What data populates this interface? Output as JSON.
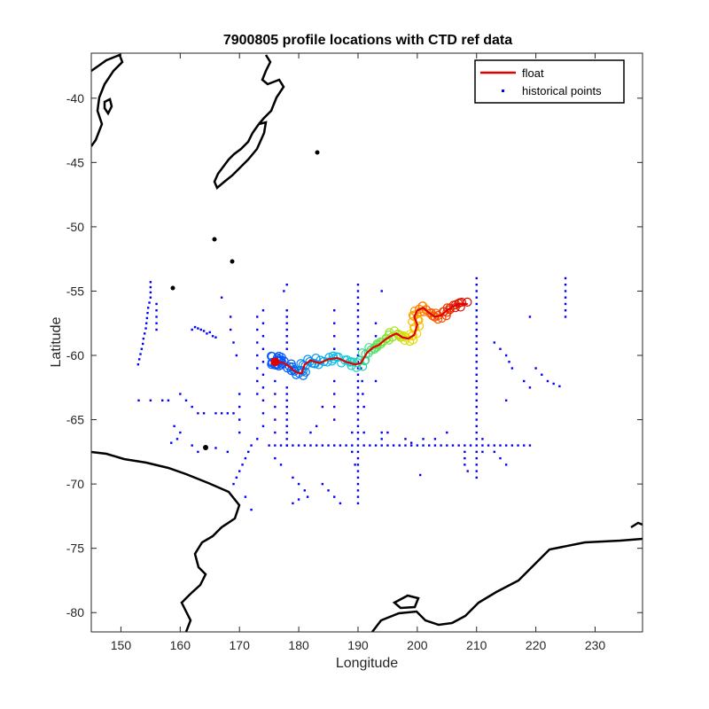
{
  "chart_data": {
    "type": "scatter",
    "title": "7900805 profile locations with CTD ref data",
    "xlabel": "Longitude",
    "ylabel": "Latitude",
    "xlim": [
      145,
      238
    ],
    "ylim": [
      -81.5,
      -36.5
    ],
    "xticks": [
      150,
      160,
      170,
      180,
      190,
      200,
      210,
      220,
      230
    ],
    "yticks": [
      -40,
      -45,
      -50,
      -55,
      -60,
      -65,
      -70,
      -75,
      -80
    ],
    "grid": false,
    "legend_position": "top-right",
    "legend": [
      {
        "label": "float",
        "style": "line",
        "color": "#e00000"
      },
      {
        "label": "historical points",
        "style": "dot",
        "color": "#0000ff"
      }
    ],
    "float_track": [
      [
        176.0,
        -60.5
      ],
      [
        177.5,
        -60.6
      ],
      [
        178.5,
        -60.9
      ],
      [
        179.5,
        -61.3
      ],
      [
        180.5,
        -61.4
      ],
      [
        181.0,
        -60.7
      ],
      [
        182.0,
        -60.4
      ],
      [
        183.5,
        -60.6
      ],
      [
        185.0,
        -60.3
      ],
      [
        186.5,
        -60.2
      ],
      [
        188.0,
        -60.5
      ],
      [
        189.5,
        -60.7
      ],
      [
        190.5,
        -60.6
      ],
      [
        191.5,
        -59.8
      ],
      [
        192.5,
        -59.4
      ],
      [
        193.5,
        -59.2
      ],
      [
        194.5,
        -58.8
      ],
      [
        195.5,
        -58.5
      ],
      [
        196.5,
        -58.3
      ],
      [
        197.5,
        -58.6
      ],
      [
        198.5,
        -58.7
      ],
      [
        199.5,
        -58.4
      ],
      [
        200.0,
        -57.6
      ],
      [
        199.5,
        -57.0
      ],
      [
        200.0,
        -56.5
      ],
      [
        201.0,
        -56.3
      ],
      [
        202.0,
        -56.7
      ],
      [
        203.0,
        -57.0
      ],
      [
        204.0,
        -56.9
      ],
      [
        205.0,
        -56.5
      ],
      [
        206.0,
        -56.2
      ],
      [
        207.0,
        -56.0
      ],
      [
        208.5,
        -56.0
      ]
    ],
    "historical_points": [
      [
        155,
        -54.3
      ],
      [
        155,
        -54.7
      ],
      [
        155,
        -55.1
      ],
      [
        155,
        -55.5
      ],
      [
        154.8,
        -55.9
      ],
      [
        154.6,
        -56.3
      ],
      [
        154.5,
        -56.7
      ],
      [
        154.4,
        -57.1
      ],
      [
        154.3,
        -57.5
      ],
      [
        154.2,
        -57.9
      ],
      [
        154.0,
        -58.3
      ],
      [
        153.8,
        -58.7
      ],
      [
        153.7,
        -59.1
      ],
      [
        153.5,
        -59.5
      ],
      [
        153.3,
        -59.9
      ],
      [
        153.1,
        -60.3
      ],
      [
        152.9,
        -60.7
      ],
      [
        156,
        -56.0
      ],
      [
        156,
        -56.5
      ],
      [
        156,
        -57.0
      ],
      [
        156,
        -57.5
      ],
      [
        156,
        -58.0
      ],
      [
        153,
        -63.5
      ],
      [
        155,
        -63.5
      ],
      [
        157,
        -63.5
      ],
      [
        158,
        -63.5
      ],
      [
        160,
        -63.0
      ],
      [
        161,
        -63.5
      ],
      [
        162,
        -64.0
      ],
      [
        163,
        -64.5
      ],
      [
        164,
        -64.5
      ],
      [
        166,
        -64.5
      ],
      [
        167,
        -64.5
      ],
      [
        168,
        -64.5
      ],
      [
        169,
        -64.5
      ],
      [
        159,
        -65.5
      ],
      [
        160,
        -66.0
      ],
      [
        159.5,
        -66.5
      ],
      [
        158.5,
        -66.8
      ],
      [
        162,
        -67.0
      ],
      [
        163,
        -67.5
      ],
      [
        166,
        -67.2
      ],
      [
        168,
        -67.5
      ],
      [
        162,
        -58.0
      ],
      [
        162.5,
        -57.8
      ],
      [
        163,
        -57.9
      ],
      [
        163.5,
        -58.0
      ],
      [
        164,
        -58.1
      ],
      [
        164.5,
        -58.3
      ],
      [
        165,
        -58.2
      ],
      [
        165.5,
        -58.5
      ],
      [
        166,
        -58.6
      ],
      [
        167,
        -55.5
      ],
      [
        168.5,
        -57.0
      ],
      [
        168.5,
        -58.0
      ],
      [
        169,
        -59.0
      ],
      [
        169.5,
        -60.0
      ],
      [
        170,
        -63.0
      ],
      [
        170,
        -64.0
      ],
      [
        170,
        -65.0
      ],
      [
        170,
        -66.0
      ],
      [
        173,
        -57.0
      ],
      [
        173,
        -58.0
      ],
      [
        173,
        -59.0
      ],
      [
        173,
        -60.0
      ],
      [
        173,
        -61.0
      ],
      [
        173,
        -62.0
      ],
      [
        173,
        -63.0
      ],
      [
        174,
        -56.5
      ],
      [
        174,
        -57.5
      ],
      [
        174,
        -58.5
      ],
      [
        174,
        -59.5
      ],
      [
        174,
        -60.5
      ],
      [
        174,
        -61.5
      ],
      [
        174,
        -62.5
      ],
      [
        174,
        -63.5
      ],
      [
        174,
        -64.5
      ],
      [
        174,
        -65.5
      ],
      [
        176,
        -62.0
      ],
      [
        176,
        -63.0
      ],
      [
        176,
        -64.0
      ],
      [
        176,
        -65.0
      ],
      [
        176,
        -66.0
      ],
      [
        178,
        -56.5
      ],
      [
        178,
        -57.0
      ],
      [
        178,
        -57.5
      ],
      [
        178,
        -58.0
      ],
      [
        178,
        -58.5
      ],
      [
        178,
        -59.0
      ],
      [
        178,
        -59.5
      ],
      [
        178,
        -62.5
      ],
      [
        178,
        -63.0
      ],
      [
        178,
        -63.5
      ],
      [
        178,
        -64.0
      ],
      [
        178,
        -64.5
      ],
      [
        178,
        -65.0
      ],
      [
        178,
        -65.5
      ],
      [
        178,
        -66.0
      ],
      [
        178,
        -66.5
      ],
      [
        178,
        -67.0
      ],
      [
        177.5,
        -55.0
      ],
      [
        178,
        -54.5
      ],
      [
        173,
        -66.5
      ],
      [
        172,
        -67.0
      ],
      [
        171.5,
        -67.5
      ],
      [
        171,
        -68.0
      ],
      [
        170.5,
        -68.5
      ],
      [
        170,
        -69.0
      ],
      [
        169.5,
        -69.5
      ],
      [
        169,
        -70.0
      ],
      [
        171,
        -71.0
      ],
      [
        172,
        -72.0
      ],
      [
        175,
        -67.0
      ],
      [
        176,
        -67.0
      ],
      [
        177,
        -67.0
      ],
      [
        178,
        -67.0
      ],
      [
        179,
        -67.0
      ],
      [
        180,
        -67.0
      ],
      [
        181,
        -67.0
      ],
      [
        182,
        -67.0
      ],
      [
        183,
        -67.0
      ],
      [
        184,
        -67.0
      ],
      [
        185,
        -67.0
      ],
      [
        186,
        -67.0
      ],
      [
        187,
        -67.0
      ],
      [
        188,
        -67.0
      ],
      [
        189,
        -67.0
      ],
      [
        190,
        -67.0
      ],
      [
        191,
        -67.0
      ],
      [
        192,
        -67.0
      ],
      [
        193,
        -67.0
      ],
      [
        194,
        -67.0
      ],
      [
        195,
        -67.0
      ],
      [
        196,
        -67.0
      ],
      [
        197,
        -67.0
      ],
      [
        198,
        -67.0
      ],
      [
        199,
        -67.0
      ],
      [
        200,
        -67.0
      ],
      [
        201,
        -67.0
      ],
      [
        202,
        -67.0
      ],
      [
        203,
        -67.0
      ],
      [
        204,
        -67.0
      ],
      [
        205,
        -67.0
      ],
      [
        206,
        -67.0
      ],
      [
        207,
        -67.0
      ],
      [
        208,
        -67.0
      ],
      [
        209,
        -67.0
      ],
      [
        210,
        -67.0
      ],
      [
        211,
        -67.0
      ],
      [
        212,
        -67.0
      ],
      [
        213,
        -67.0
      ],
      [
        214,
        -67.0
      ],
      [
        215,
        -67.0
      ],
      [
        216,
        -67.0
      ],
      [
        217,
        -67.0
      ],
      [
        218,
        -67.0
      ],
      [
        219,
        -67.0
      ],
      [
        176,
        -68.0
      ],
      [
        177,
        -68.5
      ],
      [
        179,
        -69.5
      ],
      [
        180,
        -70.0
      ],
      [
        181,
        -70.5
      ],
      [
        181.5,
        -71.0
      ],
      [
        180,
        -71.2
      ],
      [
        179,
        -71.5
      ],
      [
        184,
        -70.0
      ],
      [
        185,
        -70.5
      ],
      [
        186,
        -71.0
      ],
      [
        187,
        -71.5
      ],
      [
        184,
        -64.0
      ],
      [
        183,
        -65.5
      ],
      [
        182,
        -66.0
      ],
      [
        186,
        -56.5
      ],
      [
        186,
        -57.5
      ],
      [
        186,
        -58.5
      ],
      [
        186,
        -59.5
      ],
      [
        186,
        -62.0
      ],
      [
        186,
        -63.0
      ],
      [
        186,
        -64.0
      ],
      [
        186,
        -65.0
      ],
      [
        190,
        -54.5
      ],
      [
        190,
        -55.0
      ],
      [
        190,
        -55.5
      ],
      [
        190,
        -56.0
      ],
      [
        190,
        -56.5
      ],
      [
        190,
        -57.0
      ],
      [
        190,
        -57.5
      ],
      [
        190,
        -58.0
      ],
      [
        190,
        -58.5
      ],
      [
        190,
        -59.0
      ],
      [
        190,
        -59.5
      ],
      [
        190,
        -60.0
      ],
      [
        190,
        -60.5
      ],
      [
        190,
        -61.0
      ],
      [
        190,
        -61.5
      ],
      [
        190,
        -62.0
      ],
      [
        190,
        -62.5
      ],
      [
        190,
        -63.0
      ],
      [
        190,
        -63.5
      ],
      [
        190,
        -64.0
      ],
      [
        190,
        -64.5
      ],
      [
        190,
        -65.0
      ],
      [
        190,
        -65.5
      ],
      [
        190,
        -66.0
      ],
      [
        190,
        -66.5
      ],
      [
        190,
        -67.5
      ],
      [
        190,
        -68.0
      ],
      [
        190,
        -68.5
      ],
      [
        190,
        -69.0
      ],
      [
        190,
        -69.5
      ],
      [
        190,
        -70.0
      ],
      [
        190,
        -70.5
      ],
      [
        190,
        -71.0
      ],
      [
        190,
        -71.5
      ],
      [
        190.5,
        -61.0
      ],
      [
        190.7,
        -62.0
      ],
      [
        190.8,
        -63.0
      ],
      [
        191,
        -64.0
      ],
      [
        191,
        -66.0
      ],
      [
        189,
        -66.0
      ],
      [
        189,
        -67.5
      ],
      [
        189.5,
        -68.5
      ],
      [
        193,
        -57.5
      ],
      [
        193,
        -58.5
      ],
      [
        193,
        -62.0
      ],
      [
        194,
        -55.0
      ],
      [
        194,
        -66.0
      ],
      [
        194,
        -66.5
      ],
      [
        195,
        -66.0
      ],
      [
        198,
        -66.5
      ],
      [
        199,
        -66.8
      ],
      [
        200.5,
        -69.3
      ],
      [
        201,
        -66.5
      ],
      [
        203,
        -66.5
      ],
      [
        205,
        -66.0
      ],
      [
        208,
        -67.5
      ],
      [
        208,
        -68.0
      ],
      [
        208,
        -68.5
      ],
      [
        208.5,
        -69.0
      ],
      [
        210,
        -54.0
      ],
      [
        210,
        -54.5
      ],
      [
        210,
        -55.0
      ],
      [
        210,
        -55.5
      ],
      [
        210,
        -56.0
      ],
      [
        210,
        -56.5
      ],
      [
        210,
        -57.0
      ],
      [
        210,
        -57.5
      ],
      [
        210,
        -58.0
      ],
      [
        210,
        -58.5
      ],
      [
        210,
        -59.0
      ],
      [
        210,
        -59.5
      ],
      [
        210,
        -60.0
      ],
      [
        210,
        -60.5
      ],
      [
        210,
        -61.0
      ],
      [
        210,
        -61.5
      ],
      [
        210,
        -62.0
      ],
      [
        210,
        -62.5
      ],
      [
        210,
        -63.0
      ],
      [
        210,
        -63.5
      ],
      [
        210,
        -64.0
      ],
      [
        210,
        -64.5
      ],
      [
        210,
        -65.0
      ],
      [
        210,
        -65.5
      ],
      [
        210,
        -66.0
      ],
      [
        210,
        -66.5
      ],
      [
        210,
        -67.5
      ],
      [
        210,
        -68.0
      ],
      [
        210,
        -68.5
      ],
      [
        210,
        -69.0
      ],
      [
        210,
        -69.5
      ],
      [
        211,
        -66.5
      ],
      [
        211,
        -67.5
      ],
      [
        213,
        -67.5
      ],
      [
        214,
        -68.0
      ],
      [
        215,
        -68.5
      ],
      [
        213,
        -59.0
      ],
      [
        214,
        -59.5
      ],
      [
        215,
        -60.0
      ],
      [
        215.5,
        -60.5
      ],
      [
        216,
        -61.0
      ],
      [
        215,
        -63.5
      ],
      [
        218,
        -62.0
      ],
      [
        219,
        -62.5
      ],
      [
        219,
        -57.0
      ],
      [
        220,
        -61.0
      ],
      [
        221,
        -61.5
      ],
      [
        222,
        -62.0
      ],
      [
        223,
        -62.2
      ],
      [
        224,
        -62.4
      ],
      [
        225,
        -54.0
      ],
      [
        225,
        -54.5
      ],
      [
        225,
        -55.0
      ],
      [
        225,
        -55.5
      ],
      [
        225,
        -56.0
      ],
      [
        225,
        -56.5
      ],
      [
        225,
        -57.0
      ]
    ]
  },
  "icons": {
    "legend_line": "red-line-icon",
    "legend_dot": "blue-dot-icon"
  }
}
